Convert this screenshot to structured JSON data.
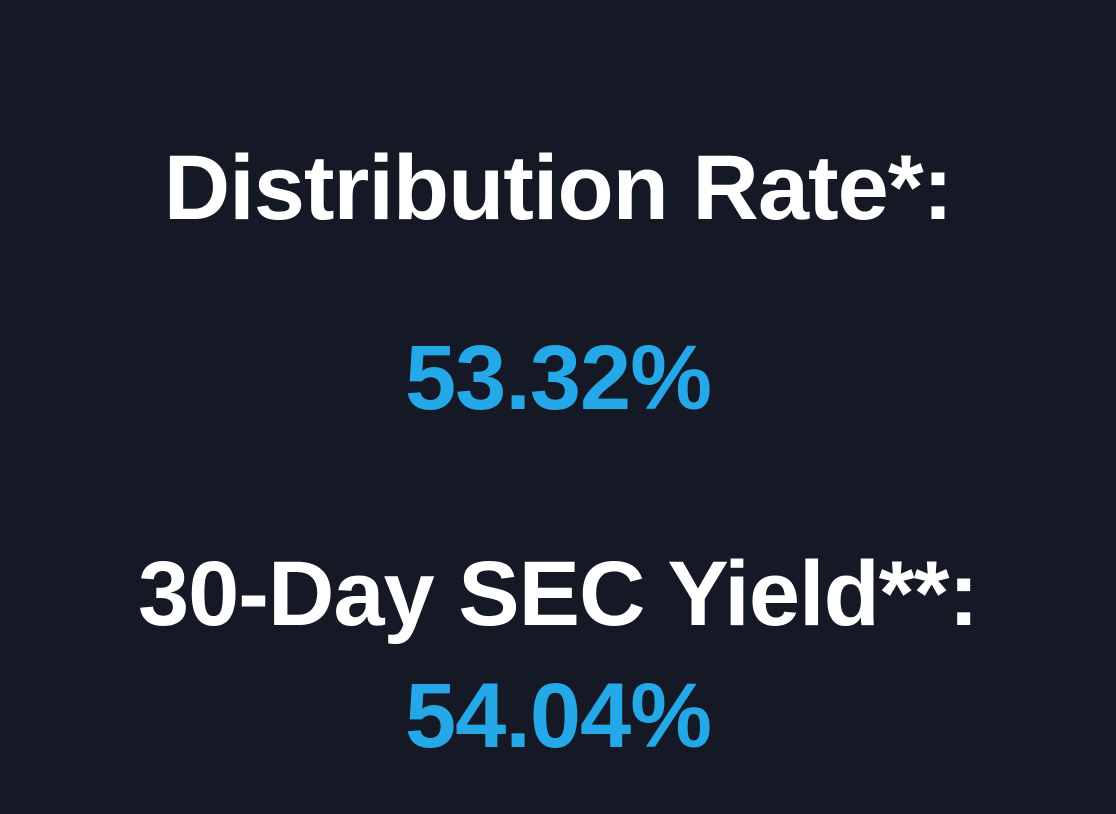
{
  "colors": {
    "background": "#151825",
    "label": "#ffffff",
    "value": "#24a8e8"
  },
  "distribution_rate": {
    "label": "Distribution Rate*:",
    "value": "53.32%"
  },
  "sec_yield": {
    "label": "30-Day SEC Yield**:",
    "value": "54.04%"
  }
}
